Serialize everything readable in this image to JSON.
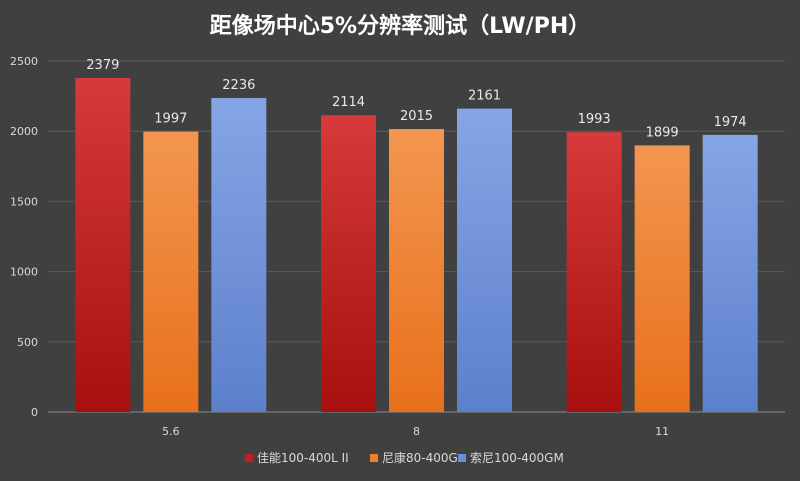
{
  "chart_data": {
    "type": "bar",
    "title": "距像场中心5%分辨率测试（LW/PH）",
    "categories": [
      "5.6",
      "8",
      "11"
    ],
    "series": [
      {
        "name": "佳能100-400L II",
        "values": [
          2379,
          2114,
          1993
        ],
        "color": "#c41e1e"
      },
      {
        "name": "尼康80-400G",
        "values": [
          1997,
          2015,
          1899
        ],
        "color": "#f07f2a"
      },
      {
        "name": "索尼100-400GM",
        "values": [
          2236,
          2161,
          1974
        ],
        "color": "#6b8fd6"
      }
    ],
    "ylim": [
      0,
      2500
    ],
    "yticks": [
      0,
      500,
      1000,
      1500,
      2000,
      2500
    ],
    "xlabel": "",
    "ylabel": "",
    "legend_position": "bottom",
    "grid": true
  }
}
